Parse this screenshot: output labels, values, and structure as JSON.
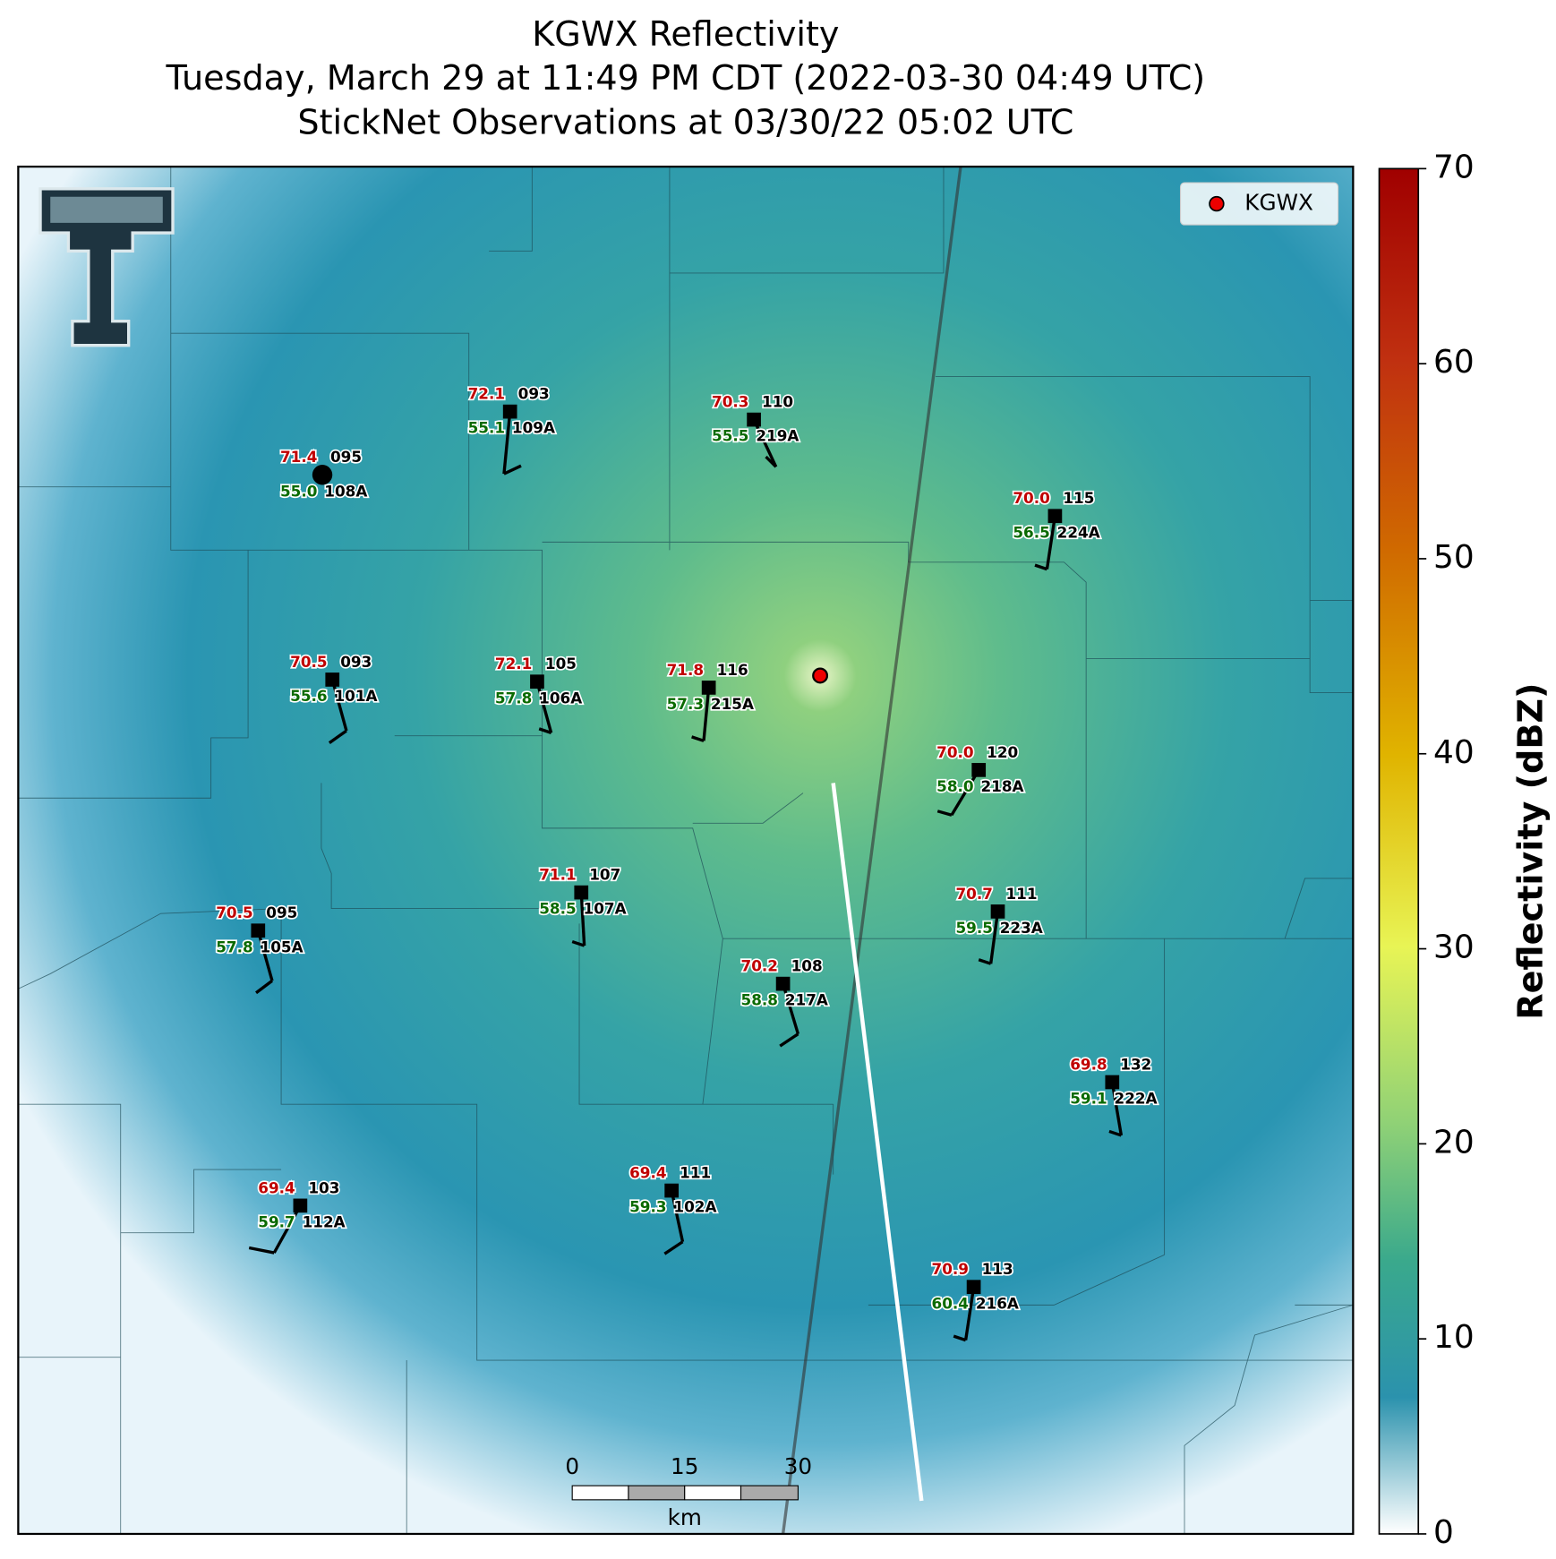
{
  "title": [
    "KGWX Reflectivity",
    "Tuesday, March 29 at 11:49 PM CDT (2022-03-30 04:49 UTC)",
    "StickNet Observations at 03/30/22 05:02 UTC"
  ],
  "legend": "KGWX",
  "colorbar": {
    "label": "Reflectivity (dBZ)",
    "lim": [
      0,
      70
    ],
    "ticks": [
      0,
      10,
      20,
      30,
      40,
      50,
      60,
      70
    ]
  },
  "scale_bar": {
    "ticks": [
      "0",
      "15",
      "30"
    ],
    "unit": "km"
  },
  "stations": [
    {
      "id": "108A",
      "number": "095",
      "temperature": "71.4",
      "dewpoint": "55.0"
    },
    {
      "id": "109A",
      "number": "093",
      "temperature": "72.1",
      "dewpoint": "55.1"
    },
    {
      "id": "219A",
      "number": "110",
      "temperature": "70.3",
      "dewpoint": "55.5"
    },
    {
      "id": "224A",
      "number": "115",
      "temperature": "70.0",
      "dewpoint": "56.5"
    },
    {
      "id": "101A",
      "number": "093",
      "temperature": "70.5",
      "dewpoint": "55.6"
    },
    {
      "id": "106A",
      "number": "105",
      "temperature": "72.1",
      "dewpoint": "57.8"
    },
    {
      "id": "215A",
      "number": "116",
      "temperature": "71.8",
      "dewpoint": "57.3"
    },
    {
      "id": "218A",
      "number": "120",
      "temperature": "70.0",
      "dewpoint": "58.0"
    },
    {
      "id": "107A",
      "number": "107",
      "temperature": "71.1",
      "dewpoint": "58.5"
    },
    {
      "id": "105A",
      "number": "095",
      "temperature": "70.5",
      "dewpoint": "57.8"
    },
    {
      "id": "223A",
      "number": "111",
      "temperature": "70.7",
      "dewpoint": "59.5"
    },
    {
      "id": "217A",
      "number": "108",
      "temperature": "70.2",
      "dewpoint": "58.8"
    },
    {
      "id": "222A",
      "number": "132",
      "temperature": "69.8",
      "dewpoint": "59.1"
    },
    {
      "id": "112A",
      "number": "103",
      "temperature": "69.4",
      "dewpoint": "59.7"
    },
    {
      "id": "102A",
      "number": "111",
      "temperature": "69.4",
      "dewpoint": "59.3"
    },
    {
      "id": "216A",
      "number": "113",
      "temperature": "70.9",
      "dewpoint": "60.4"
    }
  ]
}
